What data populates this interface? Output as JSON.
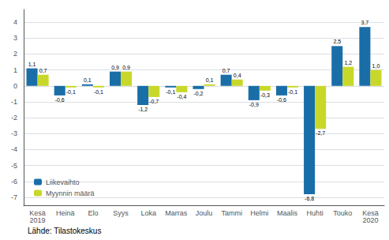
{
  "chart_data": {
    "type": "bar",
    "categories": [
      "Kesä\n2019",
      "Heinä",
      "Elo",
      "Syys",
      "Loka",
      "Marras",
      "Joulu",
      "Tammi",
      "Helmi",
      "Maalis",
      "Huhti",
      "Touko",
      "Kesä\n2020"
    ],
    "series": [
      {
        "name": "Liikevaihto",
        "color": "#1a6ea8",
        "values": [
          1.1,
          -0.6,
          0.1,
          0.9,
          -1.2,
          -0.1,
          -0.2,
          0.7,
          -0.9,
          -0.6,
          -6.8,
          2.5,
          3.7
        ],
        "value_labels": [
          "1,1",
          "-0,6",
          "0,1",
          "0,9",
          "-1,2",
          "-0,1",
          "-0,2",
          "0,7",
          "-0,9",
          "-0,6",
          "-6,8",
          "2,5",
          "3,7"
        ]
      },
      {
        "name": "Myynnin määrä",
        "color": "#c8d82a",
        "values": [
          0.7,
          -0.1,
          -0.1,
          0.9,
          -0.7,
          -0.4,
          0.1,
          0.4,
          -0.3,
          -0.1,
          -2.7,
          1.2,
          1.0
        ],
        "value_labels": [
          "0,7",
          "-0,1",
          "-0,1",
          "0,9",
          "-0,7",
          "-0,4",
          "0,1",
          "0,4",
          "-0,3",
          "-0,1",
          "-2,7",
          "1,2",
          "1,0"
        ]
      }
    ],
    "ylim": [
      -7.5,
      4.8
    ],
    "yticks": [
      -7,
      -6,
      -5,
      -4,
      -3,
      -2,
      -1,
      0,
      1,
      2,
      3,
      4
    ],
    "grid": true,
    "legend": "lower left",
    "data_labels": true,
    "annotation": "Lähde: Tilastokeskus"
  }
}
